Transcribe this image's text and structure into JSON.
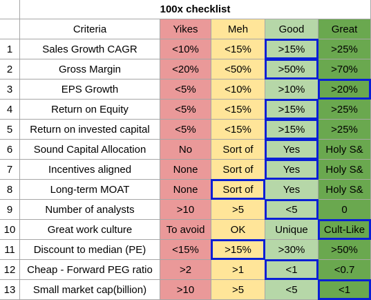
{
  "title": "100x checklist",
  "headers": {
    "criteria": "Criteria",
    "yikes": "Yikes",
    "meh": "Meh",
    "good": "Good",
    "great": "Great"
  },
  "colors": {
    "yikes": "#ea9999",
    "meh": "#ffe599",
    "good": "#b6d7a8",
    "great": "#6aa84f",
    "highlight": "#0a1fd6",
    "grid": "#a6a6a6"
  },
  "rows": [
    {
      "n": "1",
      "criteria": "Sales Growth CAGR",
      "yikes": "<10%",
      "meh": "<15%",
      "good": ">15%",
      "great": ">25%"
    },
    {
      "n": "2",
      "criteria": "Gross Margin",
      "yikes": "<20%",
      "meh": "<50%",
      "good": ">50%",
      "great": ">70%"
    },
    {
      "n": "3",
      "criteria": "EPS Growth",
      "yikes": "<5%",
      "meh": "<10%",
      "good": ">10%",
      "great": ">20%"
    },
    {
      "n": "4",
      "criteria": "Return on Equity",
      "yikes": "<5%",
      "meh": "<15%",
      "good": ">15%",
      "great": ">25%"
    },
    {
      "n": "5",
      "criteria": "Return on invested capital",
      "yikes": "<5%",
      "meh": "<15%",
      "good": ">15%",
      "great": ">25%"
    },
    {
      "n": "6",
      "criteria": "Sound Capital Allocation",
      "yikes": "No",
      "meh": "Sort of",
      "good": "Yes",
      "great": "Holy S&"
    },
    {
      "n": "7",
      "criteria": "Incentives aligned",
      "yikes": "None",
      "meh": "Sort of",
      "good": "Yes",
      "great": "Holy S&"
    },
    {
      "n": "8",
      "criteria": "Long-term MOAT",
      "yikes": "None",
      "meh": "Sort of",
      "good": "Yes",
      "great": "Holy S&"
    },
    {
      "n": "9",
      "criteria": "Number of analysts",
      "yikes": ">10",
      "meh": ">5",
      "good": "<5",
      "great": "0"
    },
    {
      "n": "10",
      "criteria": "Great work culture",
      "yikes": "To avoid",
      "meh": "OK",
      "good": "Unique",
      "great": "Cult-Like"
    },
    {
      "n": "11",
      "criteria": "Discount to median (PE)",
      "yikes": "<15%",
      "meh": ">15%",
      "good": ">30%",
      "great": ">50%"
    },
    {
      "n": "12",
      "criteria": "Cheap - Forward PEG ratio",
      "yikes": ">2",
      "meh": ">1",
      "good": "<1",
      "great": "<0.7"
    },
    {
      "n": "13",
      "criteria": "Small market cap(billion)",
      "yikes": ">10",
      "meh": ">5",
      "good": "<5",
      "great": "<1"
    }
  ],
  "highlighted": [
    {
      "row": 1,
      "col": "good"
    },
    {
      "row": 2,
      "col": "good"
    },
    {
      "row": 3,
      "col": "great"
    },
    {
      "row": 4,
      "col": "good"
    },
    {
      "row": 5,
      "col": "good"
    },
    {
      "row": 6,
      "col": "good"
    },
    {
      "row": 7,
      "col": "good"
    },
    {
      "row": 8,
      "col": "meh"
    },
    {
      "row": 9,
      "col": "good"
    },
    {
      "row": 10,
      "col": "great"
    },
    {
      "row": 11,
      "col": "meh"
    },
    {
      "row": 12,
      "col": "good"
    },
    {
      "row": 13,
      "col": "great"
    }
  ]
}
